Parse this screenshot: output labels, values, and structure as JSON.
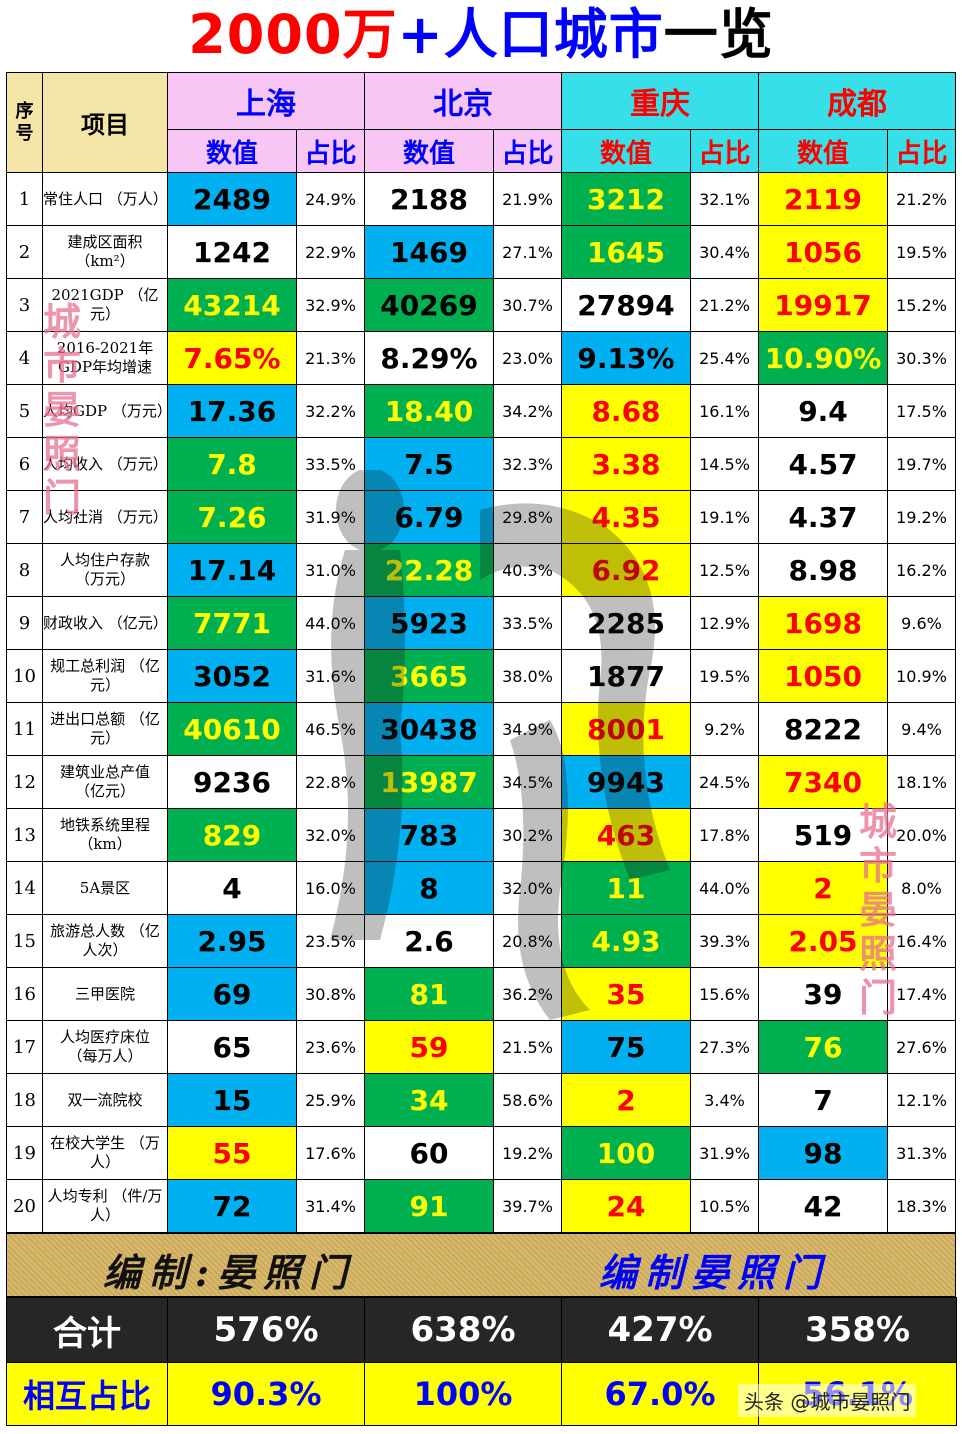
{
  "title": {
    "part1": "2000万",
    "part2": "+人口城市",
    "part3": "一览"
  },
  "header": {
    "seq_label": "序号",
    "item_label": "项目",
    "value_label": "数值",
    "ratio_label": "占比",
    "cities": [
      "上海",
      "北京",
      "重庆",
      "成都"
    ]
  },
  "rows": [
    {
      "seq": "1",
      "item": "常住人口\n（万人）",
      "cells": [
        [
          "2489",
          "24.9%"
        ],
        [
          "2188",
          "21.9%"
        ],
        [
          "3212",
          "32.1%"
        ],
        [
          "2119",
          "21.2%"
        ]
      ]
    },
    {
      "seq": "2",
      "item": "建成区面积\n（km²）",
      "cells": [
        [
          "1242",
          "22.9%"
        ],
        [
          "1469",
          "27.1%"
        ],
        [
          "1645",
          "30.4%"
        ],
        [
          "1056",
          "19.5%"
        ]
      ]
    },
    {
      "seq": "3",
      "item": "2021GDP\n（亿元）",
      "cells": [
        [
          "43214",
          "32.9%"
        ],
        [
          "40269",
          "30.7%"
        ],
        [
          "27894",
          "21.2%"
        ],
        [
          "19917",
          "15.2%"
        ]
      ]
    },
    {
      "seq": "4",
      "item": "2016-2021年\nGDP年均增速",
      "cells": [
        [
          "7.65%",
          "21.3%"
        ],
        [
          "8.29%",
          "23.0%"
        ],
        [
          "9.13%",
          "25.4%"
        ],
        [
          "10.90%",
          "30.3%"
        ]
      ]
    },
    {
      "seq": "5",
      "item": "人均GDP\n（万元）",
      "cells": [
        [
          "17.36",
          "32.2%"
        ],
        [
          "18.40",
          "34.2%"
        ],
        [
          "8.68",
          "16.1%"
        ],
        [
          "9.4",
          "17.5%"
        ]
      ]
    },
    {
      "seq": "6",
      "item": "人均收入\n（万元）",
      "cells": [
        [
          "7.8",
          "33.5%"
        ],
        [
          "7.5",
          "32.3%"
        ],
        [
          "3.38",
          "14.5%"
        ],
        [
          "4.57",
          "19.7%"
        ]
      ]
    },
    {
      "seq": "7",
      "item": "人均社消\n（万元）",
      "cells": [
        [
          "7.26",
          "31.9%"
        ],
        [
          "6.79",
          "29.8%"
        ],
        [
          "4.35",
          "19.1%"
        ],
        [
          "4.37",
          "19.2%"
        ]
      ]
    },
    {
      "seq": "8",
      "item": "人均住户存款\n（万元）",
      "cells": [
        [
          "17.14",
          "31.0%"
        ],
        [
          "22.28",
          "40.3%"
        ],
        [
          "6.92",
          "12.5%"
        ],
        [
          "8.98",
          "16.2%"
        ]
      ]
    },
    {
      "seq": "9",
      "item": "财政收入\n（亿元）",
      "cells": [
        [
          "7771",
          "44.0%"
        ],
        [
          "5923",
          "33.5%"
        ],
        [
          "2285",
          "12.9%"
        ],
        [
          "1698",
          "9.6%"
        ]
      ]
    },
    {
      "seq": "10",
      "item": "规工总利润\n（亿元）",
      "cells": [
        [
          "3052",
          "31.6%"
        ],
        [
          "3665",
          "38.0%"
        ],
        [
          "1877",
          "19.5%"
        ],
        [
          "1050",
          "10.9%"
        ]
      ]
    },
    {
      "seq": "11",
      "item": "进出口总额\n（亿元）",
      "cells": [
        [
          "40610",
          "46.5%"
        ],
        [
          "30438",
          "34.9%"
        ],
        [
          "8001",
          "9.2%"
        ],
        [
          "8222",
          "9.4%"
        ]
      ]
    },
    {
      "seq": "12",
      "item": "建筑业总产值\n（亿元）",
      "cells": [
        [
          "9236",
          "22.8%"
        ],
        [
          "13987",
          "34.5%"
        ],
        [
          "9943",
          "24.5%"
        ],
        [
          "7340",
          "18.1%"
        ]
      ]
    },
    {
      "seq": "13",
      "item": "地铁系统里程\n（km）",
      "cells": [
        [
          "829",
          "32.0%"
        ],
        [
          "783",
          "30.2%"
        ],
        [
          "463",
          "17.8%"
        ],
        [
          "519",
          "20.0%"
        ]
      ]
    },
    {
      "seq": "14",
      "item": "5A景区",
      "cells": [
        [
          "4",
          "16.0%"
        ],
        [
          "8",
          "32.0%"
        ],
        [
          "11",
          "44.0%"
        ],
        [
          "2",
          "8.0%"
        ]
      ]
    },
    {
      "seq": "15",
      "item": "旅游总人数\n（亿人次）",
      "cells": [
        [
          "2.95",
          "23.5%"
        ],
        [
          "2.6",
          "20.8%"
        ],
        [
          "4.93",
          "39.3%"
        ],
        [
          "2.05",
          "16.4%"
        ]
      ]
    },
    {
      "seq": "16",
      "item": "三甲医院",
      "cells": [
        [
          "69",
          "30.8%"
        ],
        [
          "81",
          "36.2%"
        ],
        [
          "35",
          "15.6%"
        ],
        [
          "39",
          "17.4%"
        ]
      ]
    },
    {
      "seq": "17",
      "item": "人均医疗床位\n（每万人）",
      "cells": [
        [
          "65",
          "23.6%"
        ],
        [
          "59",
          "21.5%"
        ],
        [
          "75",
          "27.3%"
        ],
        [
          "76",
          "27.6%"
        ]
      ]
    },
    {
      "seq": "18",
      "item": "双一流院校",
      "cells": [
        [
          "15",
          "25.9%"
        ],
        [
          "34",
          "58.6%"
        ],
        [
          "2",
          "3.4%"
        ],
        [
          "7",
          "12.1%"
        ]
      ]
    },
    {
      "seq": "19",
      "item": "在校大学生\n（万人）",
      "cells": [
        [
          "55",
          "17.6%"
        ],
        [
          "60",
          "19.2%"
        ],
        [
          "100",
          "31.9%"
        ],
        [
          "98",
          "31.3%"
        ]
      ]
    },
    {
      "seq": "20",
      "item": "人均专利\n（件/万人）",
      "cells": [
        [
          "72",
          "31.4%"
        ],
        [
          "91",
          "39.7%"
        ],
        [
          "24",
          "10.5%"
        ],
        [
          "42",
          "18.3%"
        ]
      ]
    }
  ],
  "styles": [
    [
      [
        "blue",
        "#000000"
      ],
      [
        "white",
        "#000000"
      ],
      [
        "green",
        "#ffff00"
      ],
      [
        "yellow",
        "#ff0000"
      ]
    ],
    [
      [
        "white",
        "#000000"
      ],
      [
        "blue",
        "#000000"
      ],
      [
        "green",
        "#ffff00"
      ],
      [
        "yellow",
        "#ff0000"
      ]
    ],
    [
      [
        "green",
        "#ffff00"
      ],
      [
        "green",
        "#000000"
      ],
      [
        "white",
        "#000000"
      ],
      [
        "yellow",
        "#ff0000"
      ]
    ],
    [
      [
        "yellow",
        "#ff0000"
      ],
      [
        "white",
        "#000000"
      ],
      [
        "blue",
        "#000000"
      ],
      [
        "green",
        "#ffff00"
      ]
    ],
    [
      [
        "blue",
        "#000000"
      ],
      [
        "green",
        "#ffff00"
      ],
      [
        "yellow",
        "#ff0000"
      ],
      [
        "white",
        "#000000"
      ]
    ],
    [
      [
        "green",
        "#ffff00"
      ],
      [
        "blue",
        "#000000"
      ],
      [
        "yellow",
        "#ff0000"
      ],
      [
        "white",
        "#000000"
      ]
    ],
    [
      [
        "green",
        "#ffff00"
      ],
      [
        "blue",
        "#000000"
      ],
      [
        "yellow",
        "#ff0000"
      ],
      [
        "white",
        "#000000"
      ]
    ],
    [
      [
        "blue",
        "#000000"
      ],
      [
        "green",
        "#ffff00"
      ],
      [
        "yellow",
        "#ff0000"
      ],
      [
        "white",
        "#000000"
      ]
    ],
    [
      [
        "green",
        "#ffff00"
      ],
      [
        "blue",
        "#000000"
      ],
      [
        "white",
        "#000000"
      ],
      [
        "yellow",
        "#ff0000"
      ]
    ],
    [
      [
        "blue",
        "#000000"
      ],
      [
        "green",
        "#ffff00"
      ],
      [
        "white",
        "#000000"
      ],
      [
        "yellow",
        "#ff0000"
      ]
    ],
    [
      [
        "green",
        "#ffff00"
      ],
      [
        "blue",
        "#000000"
      ],
      [
        "yellow",
        "#ff0000"
      ],
      [
        "white",
        "#000000"
      ]
    ],
    [
      [
        "white",
        "#000000"
      ],
      [
        "green",
        "#ffff00"
      ],
      [
        "blue",
        "#000000"
      ],
      [
        "yellow",
        "#ff0000"
      ]
    ],
    [
      [
        "green",
        "#ffff00"
      ],
      [
        "blue",
        "#000000"
      ],
      [
        "yellow",
        "#ff0000"
      ],
      [
        "white",
        "#000000"
      ]
    ],
    [
      [
        "white",
        "#000000"
      ],
      [
        "blue",
        "#000000"
      ],
      [
        "green",
        "#ffff00"
      ],
      [
        "yellow",
        "#ff0000"
      ]
    ],
    [
      [
        "blue",
        "#000000"
      ],
      [
        "white",
        "#000000"
      ],
      [
        "green",
        "#ffff00"
      ],
      [
        "yellow",
        "#ff0000"
      ]
    ],
    [
      [
        "blue",
        "#000000"
      ],
      [
        "green",
        "#ffff00"
      ],
      [
        "yellow",
        "#ff0000"
      ],
      [
        "white",
        "#000000"
      ]
    ],
    [
      [
        "white",
        "#000000"
      ],
      [
        "yellow",
        "#ff0000"
      ],
      [
        "blue",
        "#000000"
      ],
      [
        "green",
        "#ffff00"
      ]
    ],
    [
      [
        "blue",
        "#000000"
      ],
      [
        "green",
        "#ffff00"
      ],
      [
        "yellow",
        "#ff0000"
      ],
      [
        "white",
        "#000000"
      ]
    ],
    [
      [
        "yellow",
        "#ff0000"
      ],
      [
        "white",
        "#000000"
      ],
      [
        "green",
        "#ffff00"
      ],
      [
        "blue",
        "#000000"
      ]
    ],
    [
      [
        "blue",
        "#000000"
      ],
      [
        "green",
        "#ffff00"
      ],
      [
        "yellow",
        "#ff0000"
      ],
      [
        "white",
        "#000000"
      ]
    ]
  ],
  "editor": {
    "left": "编制:晏照门",
    "right": "编制晏照门"
  },
  "totals": {
    "label": "合计",
    "values": [
      "576%",
      "638%",
      "427%",
      "358%"
    ]
  },
  "mutual": {
    "label": "相互占比",
    "values": [
      "90.3%",
      "100%",
      "67.0%",
      "56.1%"
    ]
  },
  "watermark_left": "城市晏照门",
  "watermark_right": "城市晏照门",
  "credit": "头条 @城市晏照门"
}
